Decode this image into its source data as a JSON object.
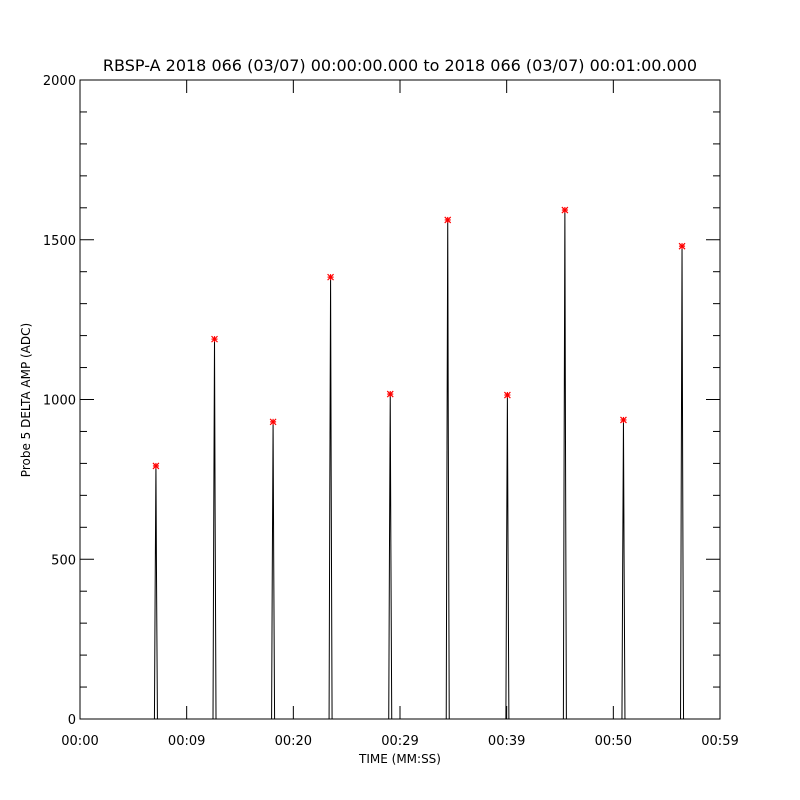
{
  "chart_data": {
    "type": "line",
    "title": "RBSP-A 2018 066 (03/07) 00:00:00.000 to 2018 066 (03/07) 00:01:00.000",
    "xlabel": "TIME (MM:SS)",
    "ylabel": "Probe 5 DELTA AMP (ADC)",
    "xlim": [
      0,
      59
    ],
    "ylim": [
      0,
      2000
    ],
    "x_tick_labels": [
      "00:00",
      "00:09",
      "00:20",
      "00:29",
      "00:39",
      "00:50",
      "00:59"
    ],
    "y_ticks": [
      0,
      500,
      1000,
      1500,
      2000
    ],
    "y_tick_labels": [
      "0",
      "500",
      "1000",
      "1500",
      "2000"
    ],
    "grid": false,
    "line_color": "#000000",
    "marker_color": "#ff0000",
    "marker": "asterisk",
    "series": [
      {
        "kind": "spikes",
        "peaks": [
          {
            "x": 7.0,
            "y": 792
          },
          {
            "x": 12.4,
            "y": 1189
          },
          {
            "x": 17.8,
            "y": 930
          },
          {
            "x": 23.1,
            "y": 1383
          },
          {
            "x": 28.6,
            "y": 1017
          },
          {
            "x": 33.9,
            "y": 1562
          },
          {
            "x": 39.4,
            "y": 1014
          },
          {
            "x": 44.7,
            "y": 1593
          },
          {
            "x": 50.1,
            "y": 936
          },
          {
            "x": 55.5,
            "y": 1480
          }
        ]
      }
    ]
  }
}
